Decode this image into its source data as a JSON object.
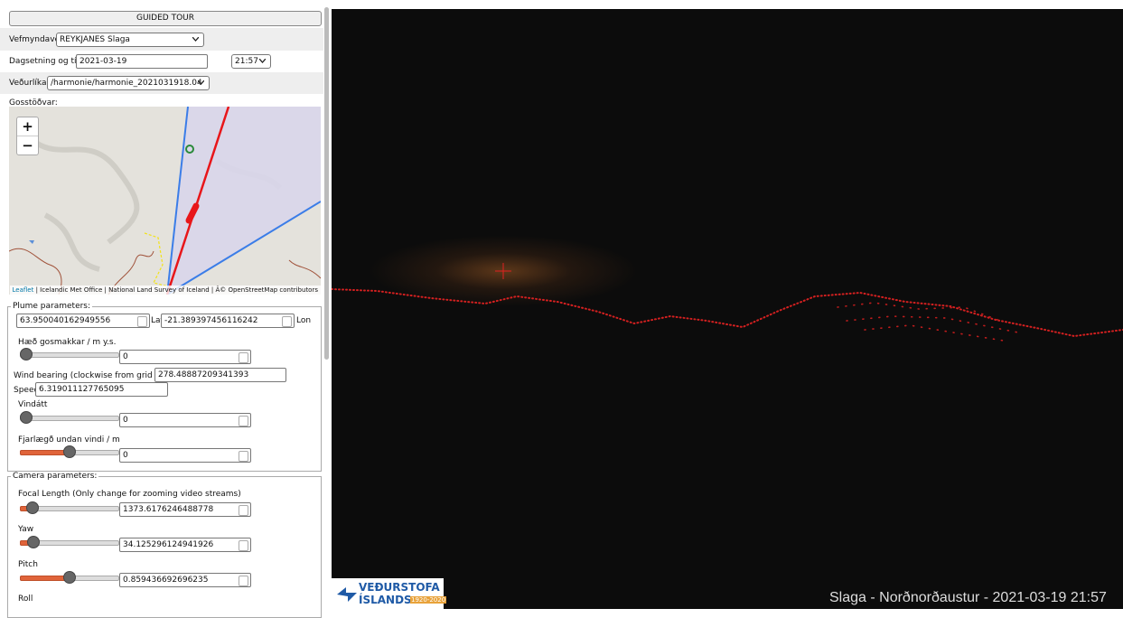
{
  "guided_tour": "GUIDED TOUR",
  "camera_row": {
    "label": "Vefmyndavél:",
    "value": "REYKJANES Slaga"
  },
  "date_row": {
    "label": "Dagsetning og tími:",
    "date": "2021-03-19",
    "time": "21:57"
  },
  "model_row": {
    "label": "Veðurlíkan:",
    "value": "/harmonie/harmonie_2021031918.04"
  },
  "map": {
    "label": "Gosstöðvar:",
    "zoom_in": "+",
    "zoom_out": "−",
    "attribution_link": "Leaflet",
    "attribution": "| Icelandic Met Office | National Land Survey of Iceland | Â© OpenStreetMap contributors"
  },
  "plume": {
    "legend": "Plume parameters:",
    "lat": "63.950040162949556",
    "lat_label": "Lat",
    "lon": "-21.389397456116242",
    "lon_label": "Lon",
    "height_label": "Hæð gosmakkar / m y.s.",
    "height": "0",
    "wind_bearing_label": "Wind bearing (clockwise from grid north)",
    "wind_bearing": "278.48887209341393",
    "speed_label": "Speed",
    "speed": "6.319011127765095",
    "wind_dir_label": "Vindátt",
    "wind_dir": "0",
    "distance_label": "Fjarlægð undan vindi / m",
    "distance": "0"
  },
  "camera": {
    "legend": "Camera parameters:",
    "focal_label": "Focal Length (Only change for zooming video streams)",
    "focal": "1373.6176246488778",
    "yaw_label": "Yaw",
    "yaw": "34.125296124941926",
    "pitch_label": "Pitch",
    "pitch": "0.859436692696235",
    "roll_label": "Roll"
  },
  "logo": {
    "line1": "VEÐURSTOFA",
    "line2": "ÍSLANDS",
    "years": "1920-2020"
  },
  "caption": "Slaga - Norðnorðaustur - 2021-03-19 21:57"
}
